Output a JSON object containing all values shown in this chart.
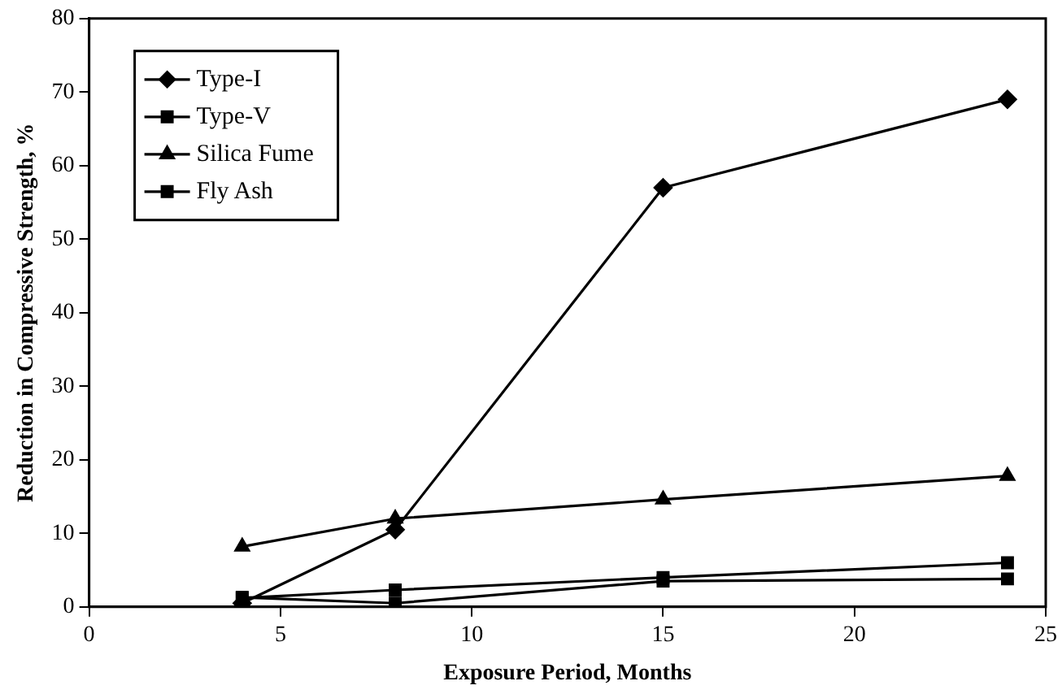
{
  "chart_data": {
    "type": "line",
    "xlabel": "Exposure Period, Months",
    "ylabel": "Reduction in Compressive Strength, %",
    "x": [
      4,
      8,
      15,
      24
    ],
    "series": [
      {
        "name": "Type-I",
        "color": "#000000",
        "marker": "diamond",
        "values": [
          0.5,
          10.5,
          57,
          69
        ]
      },
      {
        "name": "Type-V",
        "color": "#000000",
        "marker": "square",
        "values": [
          1.2,
          2.3,
          4,
          6
        ]
      },
      {
        "name": "Silica Fume",
        "color": "#000000",
        "marker": "triangle",
        "values": [
          8.2,
          12,
          14.6,
          17.8
        ]
      },
      {
        "name": "Fly Ash",
        "color": "#000000",
        "marker": "square",
        "values": [
          1.3,
          0.5,
          3.5,
          3.8
        ]
      }
    ],
    "xlim": [
      0,
      25
    ],
    "xticks": [
      0,
      5,
      10,
      15,
      20,
      25
    ],
    "ylim": [
      0,
      80
    ],
    "yticks": [
      0,
      10,
      20,
      30,
      40,
      50,
      60,
      70,
      80
    ],
    "grid": false,
    "legend": "top left",
    "line_style": "solid"
  }
}
